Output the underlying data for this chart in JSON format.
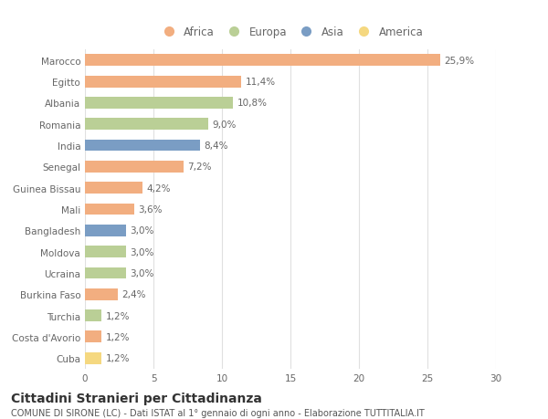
{
  "countries": [
    "Marocco",
    "Egitto",
    "Albania",
    "Romania",
    "India",
    "Senegal",
    "Guinea Bissau",
    "Mali",
    "Bangladesh",
    "Moldova",
    "Ucraina",
    "Burkina Faso",
    "Turchia",
    "Costa d'Avorio",
    "Cuba"
  ],
  "values": [
    25.9,
    11.4,
    10.8,
    9.0,
    8.4,
    7.2,
    4.2,
    3.6,
    3.0,
    3.0,
    3.0,
    2.4,
    1.2,
    1.2,
    1.2
  ],
  "labels": [
    "25,9%",
    "11,4%",
    "10,8%",
    "9,0%",
    "8,4%",
    "7,2%",
    "4,2%",
    "3,6%",
    "3,0%",
    "3,0%",
    "3,0%",
    "2,4%",
    "1,2%",
    "1,2%",
    "1,2%"
  ],
  "continents": [
    "Africa",
    "Africa",
    "Europa",
    "Europa",
    "Asia",
    "Africa",
    "Africa",
    "Africa",
    "Asia",
    "Europa",
    "Europa",
    "Africa",
    "Europa",
    "Africa",
    "America"
  ],
  "continent_colors": {
    "Africa": "#F2AE80",
    "Europa": "#BACF96",
    "Asia": "#7A9DC4",
    "America": "#F5D880"
  },
  "legend_order": [
    "Africa",
    "Europa",
    "Asia",
    "America"
  ],
  "title": "Cittadini Stranieri per Cittadinanza",
  "subtitle": "COMUNE DI SIRONE (LC) - Dati ISTAT al 1° gennaio di ogni anno - Elaborazione TUTTITALIA.IT",
  "xlim": [
    0,
    30
  ],
  "xticks": [
    0,
    5,
    10,
    15,
    20,
    25,
    30
  ],
  "background_color": "#ffffff",
  "grid_color": "#e0e0e0",
  "label_fontsize": 7.5,
  "tick_fontsize": 7.5,
  "title_fontsize": 10,
  "subtitle_fontsize": 7,
  "bar_height": 0.55
}
